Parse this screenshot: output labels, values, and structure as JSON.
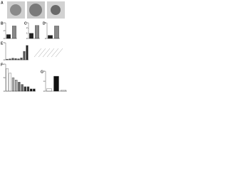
{
  "figure": {
    "panel_a": "A"
  },
  "chart_data": [
    {
      "type": "bar",
      "panel": "B",
      "categories": [
        null,
        null
      ],
      "values": [
        1,
        3.2
      ],
      "colors": [
        "#222222",
        "#888888"
      ],
      "ylim": [
        0,
        4
      ],
      "yticks": [
        0,
        2,
        4
      ]
    },
    {
      "type": "bar",
      "panel": "C",
      "categories": [
        null,
        null
      ],
      "values": [
        1,
        2.5
      ],
      "colors": [
        "#222222",
        "#888888"
      ],
      "ylim": [
        0,
        3
      ],
      "yticks": [
        0,
        1,
        2,
        3
      ]
    },
    {
      "type": "bar",
      "panel": "D",
      "categories": [
        null,
        null
      ],
      "values": [
        1,
        4
      ],
      "colors": [
        "#222222",
        "#888888"
      ],
      "ylim": [
        0,
        5
      ],
      "yticks": [
        0,
        5
      ]
    },
    {
      "type": "bar",
      "panel": "E",
      "categories": [
        null,
        null,
        null,
        null,
        null,
        null,
        null,
        null
      ],
      "values": [
        0.2,
        0.3,
        0.5,
        0.4,
        0.3,
        0.6,
        2.5,
        4.2
      ],
      "colors": [
        "#555555",
        "#555555",
        "#555555",
        "#555555",
        "#555555",
        "#555555",
        "#555555",
        "#222222"
      ],
      "ylim": [
        0,
        5
      ],
      "yticks": [
        0,
        5
      ]
    },
    {
      "type": "bar",
      "panel": "F",
      "categories": [
        null,
        null,
        null,
        null,
        null,
        null,
        null,
        null,
        null,
        null
      ],
      "values": [
        10,
        8,
        6,
        5,
        4,
        3,
        2,
        2,
        1,
        1
      ],
      "colors": [
        "#ffffff",
        "#ffffff",
        "#aaaaaa",
        "#aaaaaa",
        "#666666",
        "#666666",
        "#333333",
        "#333333",
        "#111111",
        "#111111"
      ],
      "ylim": [
        0,
        12
      ],
      "yticks": [
        0,
        6,
        12
      ]
    },
    {
      "type": "bar",
      "panel": "G",
      "categories": [
        null,
        null,
        null
      ],
      "values": [
        1,
        6,
        0.5
      ],
      "colors": [
        "#ffffff",
        "#111111",
        "#ffffff"
      ],
      "ylim": [
        0,
        8
      ],
      "yticks": [
        0,
        4,
        8
      ]
    }
  ]
}
